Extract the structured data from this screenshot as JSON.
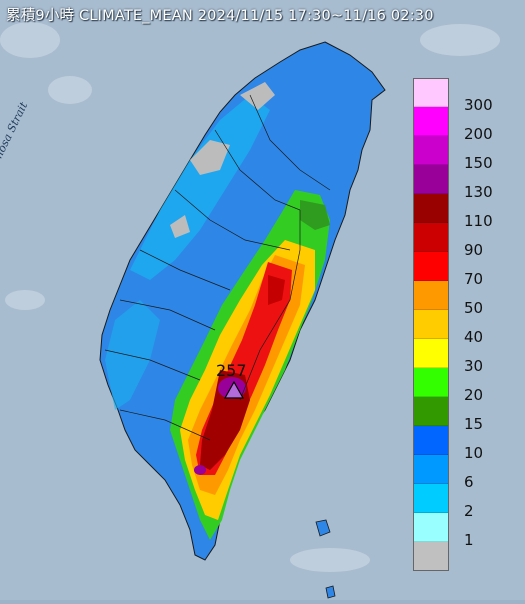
{
  "title": "累積9小時 CLIMATE_MEAN 2024/11/15 17:30~11/16 02:30",
  "strait_label": "Formosa Strait",
  "peak_marker": {
    "value": "257",
    "marker_color": "#b36bdc",
    "marker_shape": "triangle"
  },
  "background_color": "#9fb3c8",
  "legend": {
    "unit_hidden": true,
    "items": [
      {
        "label": "300",
        "color": "#ffc8ff"
      },
      {
        "label": "200",
        "color": "#ff00ff"
      },
      {
        "label": "150",
        "color": "#cc00cc"
      },
      {
        "label": "130",
        "color": "#990099"
      },
      {
        "label": "110",
        "color": "#990000"
      },
      {
        "label": "90",
        "color": "#cc0000"
      },
      {
        "label": "70",
        "color": "#ff0000"
      },
      {
        "label": "50",
        "color": "#ff9900"
      },
      {
        "label": "40",
        "color": "#ffcc00"
      },
      {
        "label": "30",
        "color": "#ffff00"
      },
      {
        "label": "20",
        "color": "#33ff00"
      },
      {
        "label": "15",
        "color": "#339900"
      },
      {
        "label": "10",
        "color": "#0066ff"
      },
      {
        "label": "6",
        "color": "#0099ff"
      },
      {
        "label": "2",
        "color": "#00ccff"
      },
      {
        "label": "1",
        "color": "#99ffff"
      },
      {
        "label": "",
        "color": "#c0c0c0"
      }
    ]
  }
}
